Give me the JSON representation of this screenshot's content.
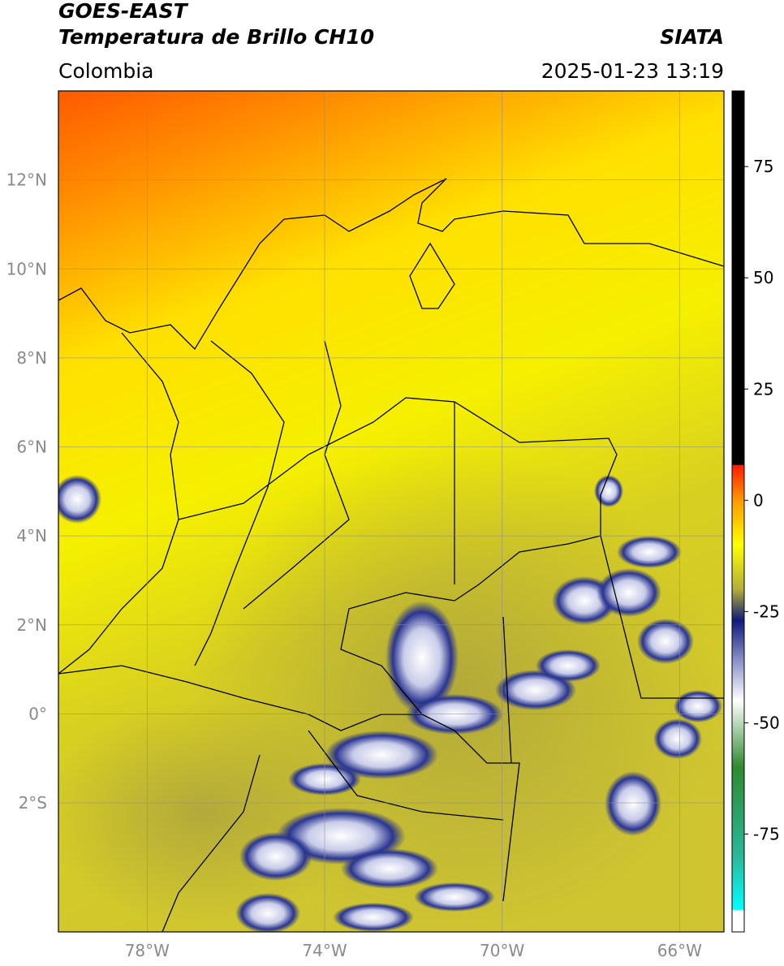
{
  "header": {
    "satellite": "GOES-EAST",
    "product": "Temperatura de Brillo CH10",
    "region": "Colombia",
    "source": "SIATA",
    "datetime": "2025-01-23 13:19"
  },
  "map": {
    "xlim": [
      -80,
      -65
    ],
    "ylim": [
      -4.9,
      14
    ],
    "xticks": [
      {
        "value": -78,
        "label": "78°W"
      },
      {
        "value": -74,
        "label": "74°W"
      },
      {
        "value": -70,
        "label": "70°W"
      },
      {
        "value": -66,
        "label": "66°W"
      }
    ],
    "yticks": [
      {
        "value": 12,
        "label": "12°N"
      },
      {
        "value": 10,
        "label": "10°N"
      },
      {
        "value": 8,
        "label": "8°N"
      },
      {
        "value": 6,
        "label": "6°N"
      },
      {
        "value": 4,
        "label": "4°N"
      },
      {
        "value": 2,
        "label": "2°N"
      },
      {
        "value": 0,
        "label": "0°"
      },
      {
        "value": -2,
        "label": "2°S"
      }
    ]
  },
  "colorbar": {
    "lim": [
      -97,
      92
    ],
    "ticks": [
      75,
      50,
      25,
      0,
      -25,
      -50,
      -75
    ],
    "stops": [
      {
        "value": 92,
        "color": "#000000"
      },
      {
        "value": 8,
        "color": "#000000"
      },
      {
        "value": 7.9,
        "color": "#ff1a00"
      },
      {
        "value": 0,
        "color": "#ff9900"
      },
      {
        "value": -10,
        "color": "#ffff00"
      },
      {
        "value": -20,
        "color": "#b3ae3a"
      },
      {
        "value": -27,
        "color": "#101a7a"
      },
      {
        "value": -36,
        "color": "#8a92c8"
      },
      {
        "value": -45,
        "color": "#ffffff"
      },
      {
        "value": -60,
        "color": "#2f8a30"
      },
      {
        "value": -80,
        "color": "#2ab89a"
      },
      {
        "value": -92,
        "color": "#00ffff"
      },
      {
        "value": -92.1,
        "color": "#ffffff"
      },
      {
        "value": -97,
        "color": "#ffffff"
      }
    ]
  }
}
